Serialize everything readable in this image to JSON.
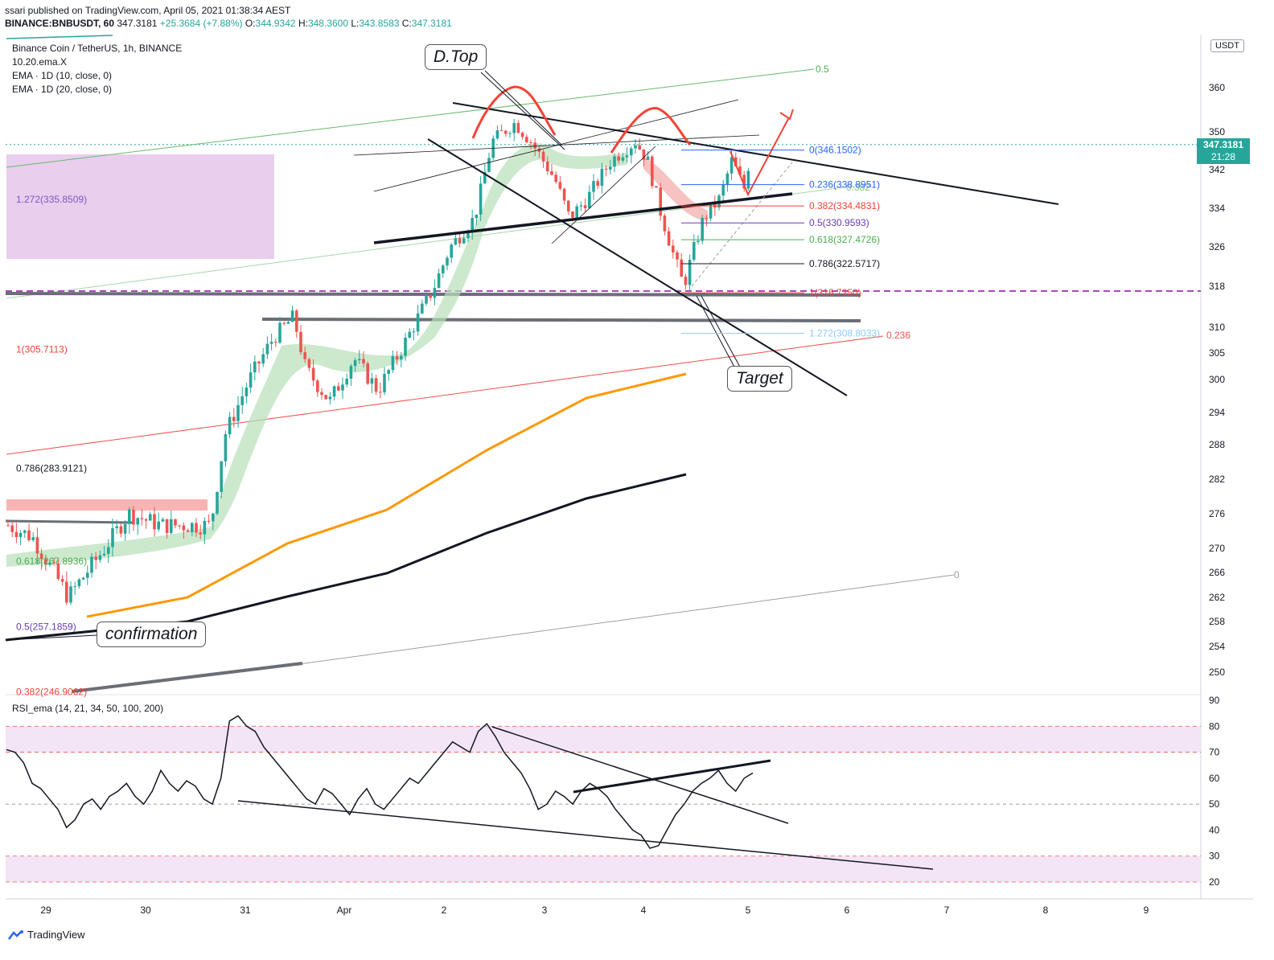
{
  "header": {
    "publish_line": "ssari published on TradingView.com, April 05, 2021 01:38:34 AEST",
    "symbol": "BINANCE:BNBUSDT, 60",
    "last": "347.3181",
    "change": "+25.3684 (+7.88%)",
    "open_label": "O:",
    "open": "344.9342",
    "high_label": "H:",
    "high": "348.3600",
    "low_label": "L:",
    "low": "343.8583",
    "close_label": "C:",
    "close": "347.3181"
  },
  "legend": {
    "title": "Binance Coin / TetherUS, 1h, BINANCE",
    "ind1": "10.20.ema.X",
    "ind2": "EMA · 1D (10, close, 0)",
    "ind3": "EMA · 1D (20, close, 0)"
  },
  "rsi_legend": "RSI_ema (14, 21, 34, 50, 100, 200)",
  "currency_badge": "USDT",
  "price_tag": {
    "price": "347.3181",
    "countdown": "21:28"
  },
  "callouts": {
    "dtop": "D.Top",
    "target": "Target",
    "confirmation": "confirmation"
  },
  "footer": {
    "brand": "TradingView"
  },
  "colors": {
    "up": "#26a69a",
    "down": "#ef5350",
    "ema_fast": "#ff9800",
    "ema_slow": "#131722",
    "cloud": "#b7dfb9",
    "cloud_red": "#f4b3b3",
    "zone": "#e1bee7",
    "fib_green": "#4caf50",
    "fib_red": "#f44336",
    "fib_blue": "#2962ff",
    "fib_purple": "#673ab7"
  },
  "chart_data": {
    "type": "candlestick",
    "title": "Binance Coin / TetherUS, 1h, BINANCE",
    "y_ticks": [
      250,
      254,
      258,
      262,
      266,
      270,
      276,
      282,
      288,
      294,
      300,
      305,
      310,
      318,
      326,
      334,
      342,
      350,
      360
    ],
    "x_ticks": [
      "29",
      "30",
      "31",
      "Apr",
      "2",
      "3",
      "4",
      "5",
      "6",
      "7",
      "8",
      "9"
    ],
    "ylim": [
      246,
      368
    ],
    "fib_left_labels": [
      {
        "text": "1.272(335.8509)",
        "value": 335.85,
        "color": "#7e57c2"
      },
      {
        "text": "1(305.7113)",
        "value": 305.71,
        "color": "#f44336"
      },
      {
        "text": "0.786(283.9121)",
        "value": 283.91,
        "color": "#131722"
      },
      {
        "text": "0.618(267.8936)",
        "value": 267.89,
        "color": "#4caf50"
      },
      {
        "text": "0.5(257.1859)",
        "value": 257.19,
        "color": "#673ab7"
      },
      {
        "text": "0.382(246.9062)",
        "value": 246.91,
        "color": "#f44336"
      }
    ],
    "fib_right_labels": [
      {
        "text": "0(346.1502)",
        "value": 346.15,
        "color": "#2962ff"
      },
      {
        "text": "0.236(338.8951)",
        "value": 338.9,
        "color": "#2962ff"
      },
      {
        "text": "0.382(334.4831)",
        "value": 334.48,
        "color": "#f44336"
      },
      {
        "text": "0.5(330.9593)",
        "value": 330.96,
        "color": "#673ab7"
      },
      {
        "text": "0.618(327.4726)",
        "value": 327.47,
        "color": "#4caf50"
      },
      {
        "text": "0.786(322.5717)",
        "value": 322.57,
        "color": "#131722"
      },
      {
        "text": "1(316.7250)",
        "value": 316.73,
        "color": "#f44336"
      },
      {
        "text": "1.272(308.8033)",
        "value": 308.8,
        "color": "#90caf9"
      }
    ],
    "channel_labels": [
      "0.5",
      "0.382",
      "0.236",
      "0"
    ],
    "current_price": 347.3181,
    "rsi": {
      "name": "RSI_ema (14, 21, 34, 50, 100, 200)",
      "y_ticks": [
        20,
        30,
        40,
        50,
        60,
        70,
        80,
        90
      ],
      "ylim": [
        18,
        92
      ],
      "bands": [
        [
          70,
          80
        ],
        [
          20,
          30
        ]
      ],
      "values": [
        71,
        70,
        66,
        58,
        56,
        52,
        48,
        41,
        44,
        50,
        52,
        48,
        53,
        55,
        58,
        53,
        50,
        55,
        63,
        58,
        55,
        59,
        57,
        52,
        50,
        60,
        82,
        84,
        80,
        78,
        72,
        68,
        64,
        60,
        56,
        52,
        50,
        56,
        54,
        50,
        46,
        52,
        56,
        50,
        48,
        52,
        56,
        60,
        58,
        62,
        66,
        70,
        74,
        72,
        70,
        78,
        81,
        76,
        70,
        66,
        62,
        56,
        48,
        50,
        55,
        53,
        50,
        55,
        58,
        56,
        53,
        48,
        44,
        40,
        38,
        33,
        34,
        40,
        46,
        50,
        55,
        58,
        60,
        63,
        58,
        55,
        60,
        62
      ]
    }
  }
}
